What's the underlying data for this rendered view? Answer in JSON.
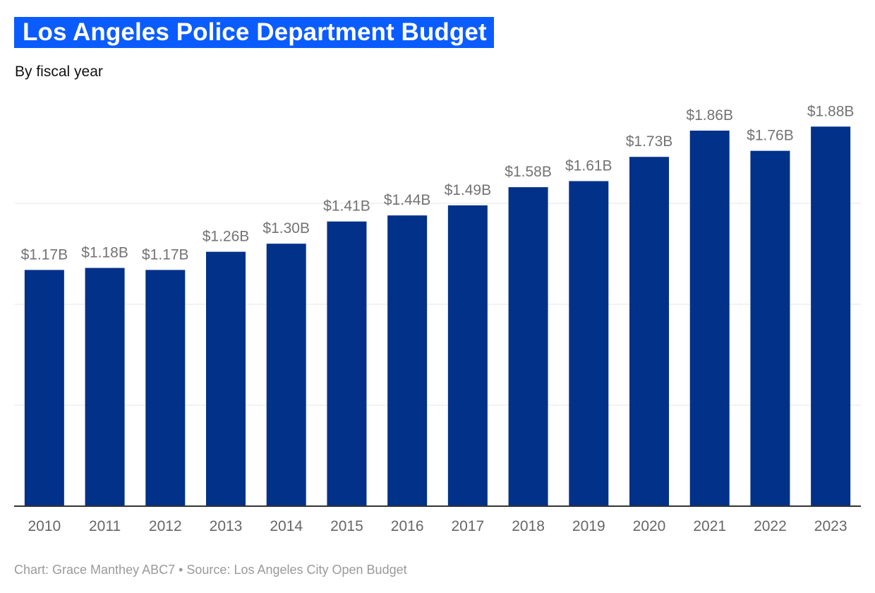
{
  "header": {
    "title": "Los Angeles Police Department Budget",
    "subtitle": "By fiscal year"
  },
  "footer": {
    "credit": "Chart: Grace Manthey ABC7 • Source: Los Angeles City Open Budget"
  },
  "colors": {
    "bar": "#02318a",
    "title_background": "#0b5cff",
    "value_label": "#737373",
    "tick_label": "#666666",
    "gridline": "#e6e6e6",
    "baseline": "#333333"
  },
  "chart_data": {
    "type": "bar",
    "title": "Los Angeles Police Department Budget",
    "subtitle": "By fiscal year",
    "categories": [
      "2010",
      "2011",
      "2012",
      "2013",
      "2014",
      "2015",
      "2016",
      "2017",
      "2018",
      "2019",
      "2020",
      "2021",
      "2022",
      "2023"
    ],
    "values": [
      1.17,
      1.18,
      1.17,
      1.26,
      1.3,
      1.41,
      1.44,
      1.49,
      1.58,
      1.61,
      1.73,
      1.86,
      1.76,
      1.88
    ],
    "value_labels": [
      "$1.17B",
      "$1.18B",
      "$1.17B",
      "$1.26B",
      "$1.30B",
      "$1.41B",
      "$1.44B",
      "$1.49B",
      "$1.58B",
      "$1.61B",
      "$1.73B",
      "$1.86B",
      "$1.76B",
      "$1.88B"
    ],
    "units": "billions of dollars",
    "ylim": [
      0,
      1.9
    ],
    "gridlines": [
      0.5,
      1.0,
      1.5
    ],
    "grid": true,
    "y_axis_labels_shown": false,
    "legend": false
  }
}
